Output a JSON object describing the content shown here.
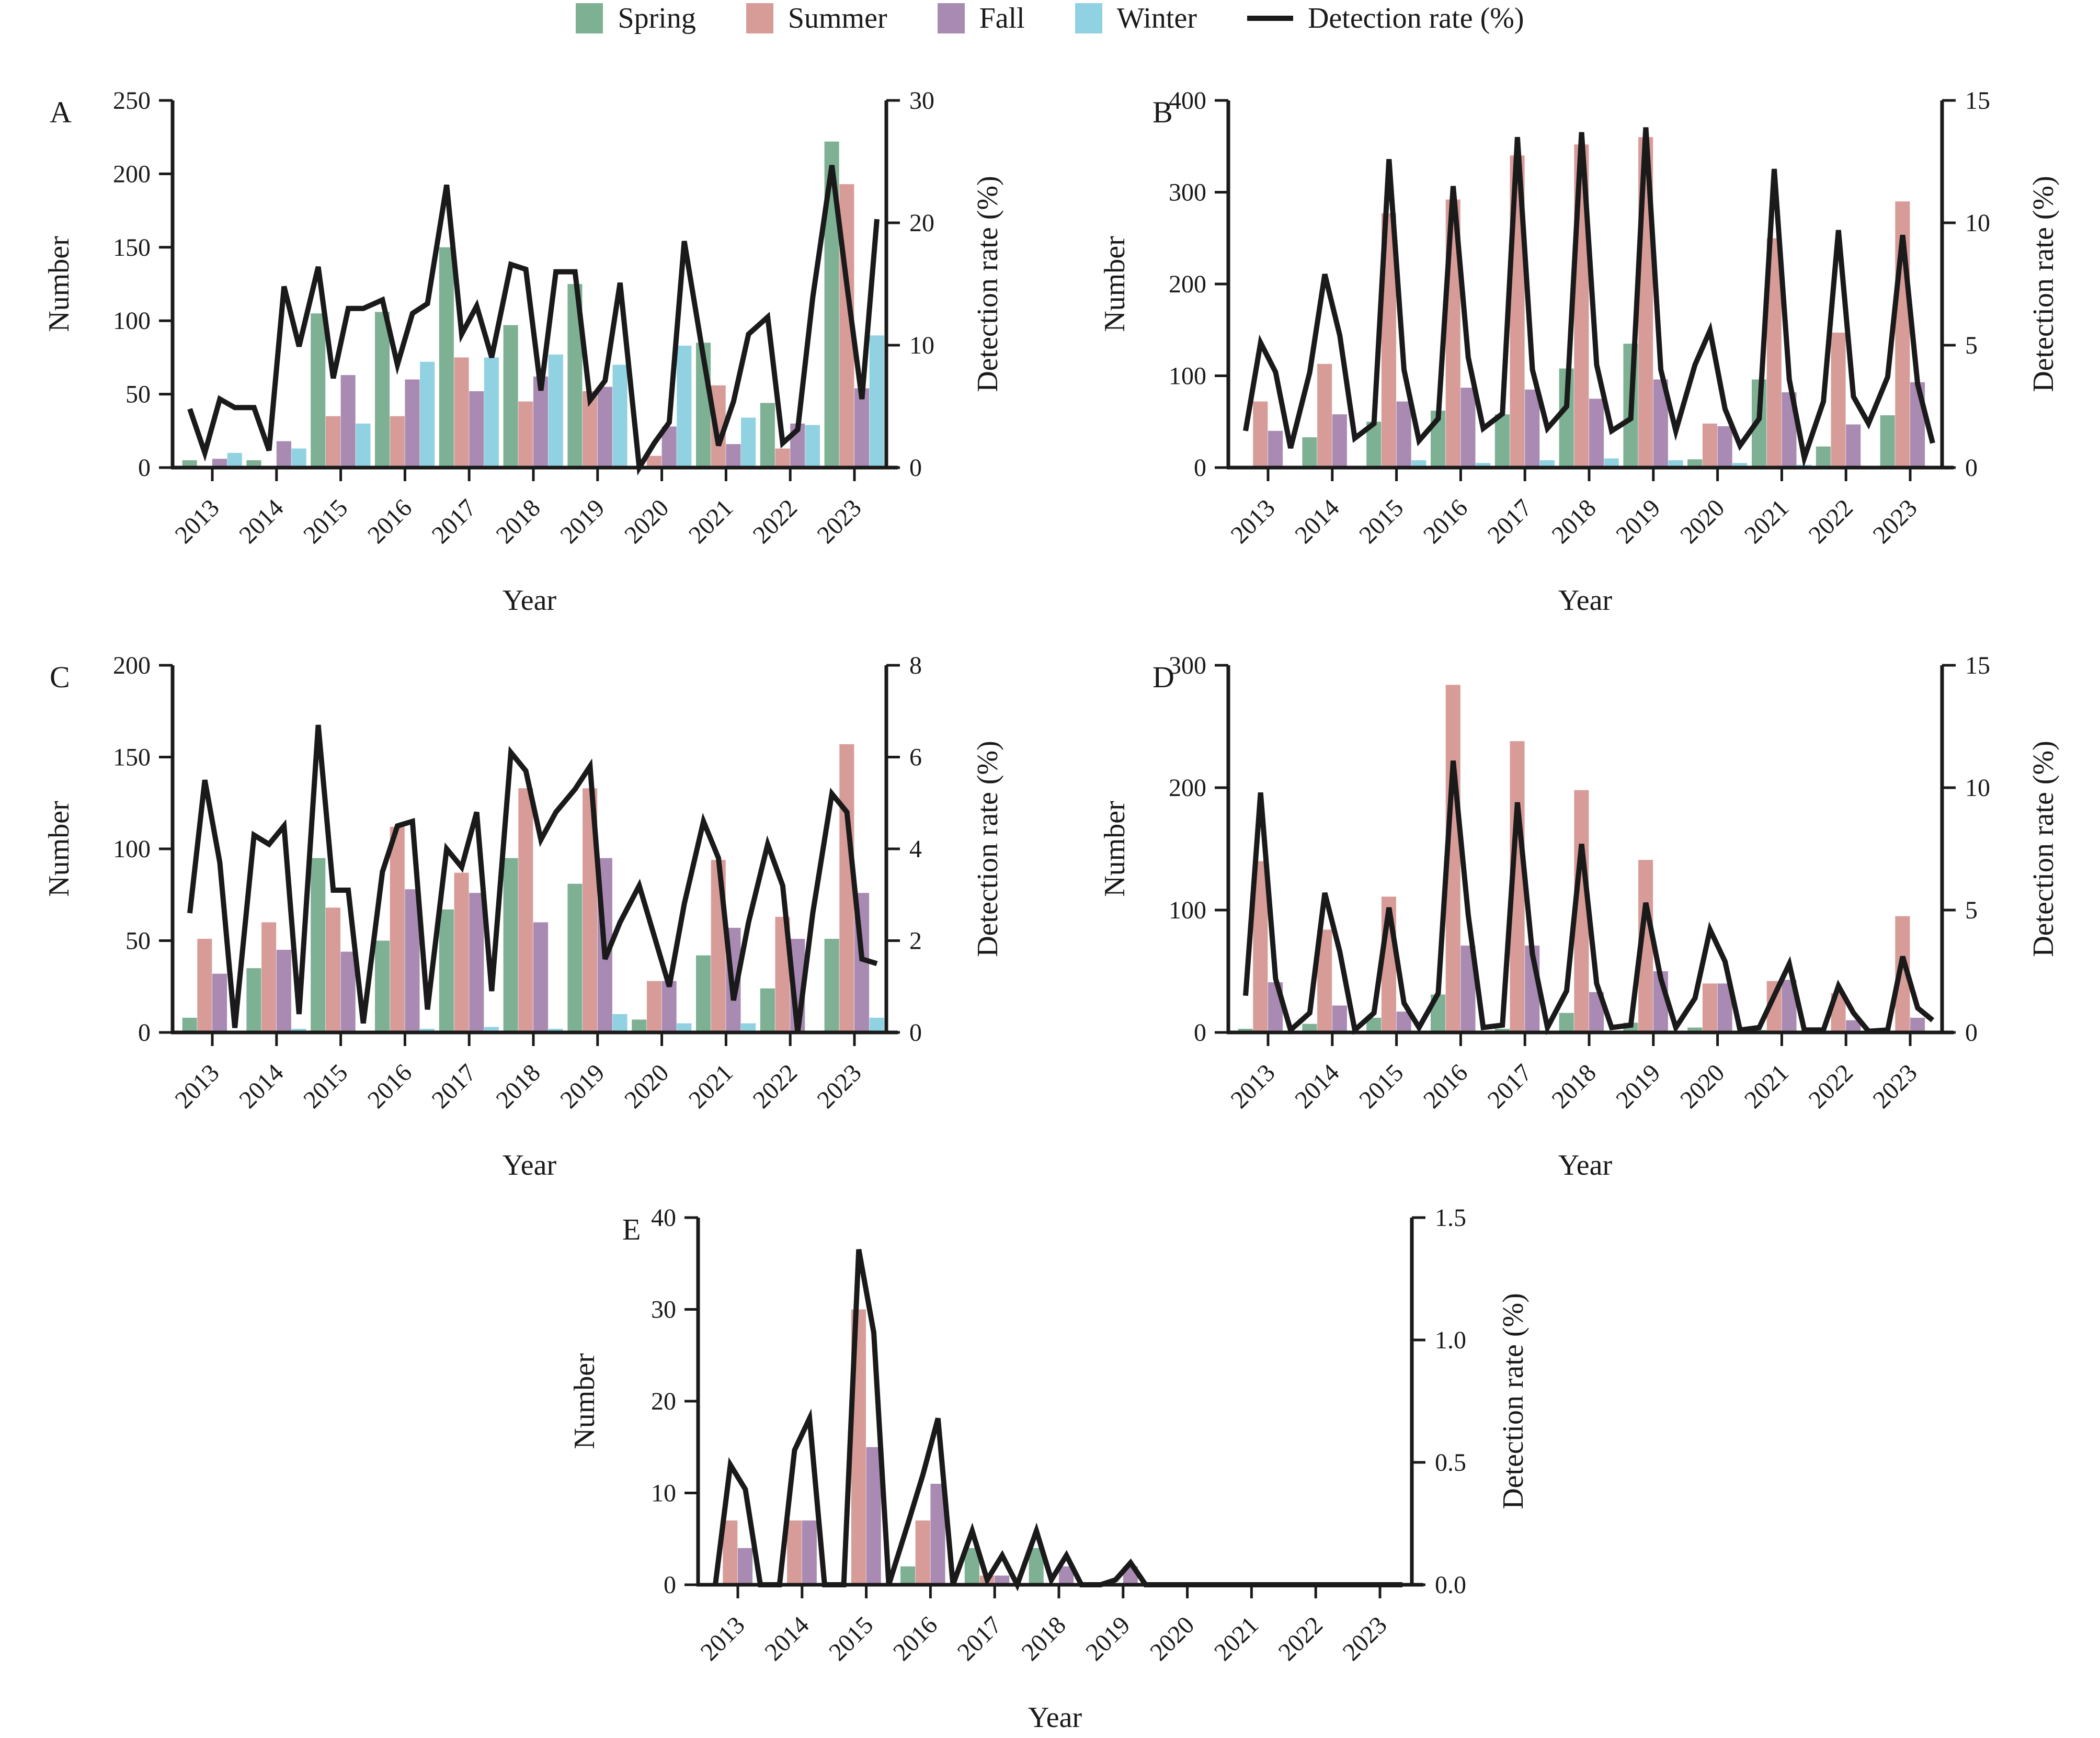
{
  "legend": {
    "items": [
      {
        "label": "Spring",
        "color": "#7EB194"
      },
      {
        "label": "Summer",
        "color": "#D89C98"
      },
      {
        "label": "Fall",
        "color": "#A98AB3"
      },
      {
        "label": "Winter",
        "color": "#90D1E2"
      }
    ],
    "line_label": "Detection rate (%)",
    "line_color": "#1a1a1a"
  },
  "axes_labels": {
    "x": "Year",
    "y_left": "Number",
    "y_right": "Detection rate (%)"
  },
  "years": [
    "2013",
    "2014",
    "2015",
    "2016",
    "2017",
    "2018",
    "2019",
    "2020",
    "2021",
    "2022",
    "2023"
  ],
  "seasons": [
    "Spring",
    "Summer",
    "Fall",
    "Winter"
  ],
  "chart_data": [
    {
      "panel_label": "A",
      "type": "bar+line",
      "categories": [
        "2013",
        "2014",
        "2015",
        "2016",
        "2017",
        "2018",
        "2019",
        "2020",
        "2021",
        "2022",
        "2023"
      ],
      "y_left": {
        "label": "Number",
        "max": 250,
        "tick_values": [
          0,
          50,
          100,
          150,
          200,
          250
        ],
        "tick_labels": [
          "0",
          "50",
          "100",
          "150",
          "200",
          "250"
        ]
      },
      "y_right": {
        "label": "Detection rate (%)",
        "max": 30,
        "tick_values": [
          0,
          10,
          20,
          30
        ],
        "tick_labels": [
          "0",
          "10",
          "20",
          "30"
        ]
      },
      "series": {
        "Spring": [
          5,
          5,
          105,
          106,
          150,
          97,
          125,
          0,
          85,
          44,
          222
        ],
        "Summer": [
          0,
          0,
          35,
          35,
          75,
          45,
          52,
          8,
          56,
          13,
          193
        ],
        "Fall": [
          6,
          18,
          63,
          60,
          52,
          62,
          55,
          28,
          16,
          30,
          54
        ],
        "Winter": [
          10,
          13,
          30,
          72,
          75,
          77,
          70,
          83,
          34,
          29,
          90
        ]
      },
      "detection_rate_quarterly": [
        4.8,
        1.2,
        5.6,
        4.9,
        4.9,
        1.4,
        14.8,
        9.9,
        16.4,
        7.3,
        13,
        13,
        13.7,
        8.4,
        12.6,
        13.4,
        23.1,
        10.9,
        13.2,
        9,
        16.6,
        16.2,
        6.3,
        16,
        16,
        5.5,
        7.1,
        15.1,
        0,
        2,
        3.7,
        18.5,
        9,
        1.8,
        5.4,
        10.9,
        12.3,
        2,
        3.1,
        13.9,
        24.7,
        14.9,
        5.6,
        20.3
      ]
    },
    {
      "panel_label": "B",
      "type": "bar+line",
      "categories": [
        "2013",
        "2014",
        "2015",
        "2016",
        "2017",
        "2018",
        "2019",
        "2020",
        "2021",
        "2022",
        "2023"
      ],
      "y_left": {
        "label": "Number",
        "max": 400,
        "tick_values": [
          0,
          100,
          200,
          300,
          400
        ],
        "tick_labels": [
          "0",
          "100",
          "200",
          "300",
          "400"
        ]
      },
      "y_right": {
        "label": "Detection rate (%)",
        "max": 15,
        "tick_values": [
          0,
          5,
          10,
          15
        ],
        "tick_labels": [
          "0",
          "5",
          "10",
          "15"
        ]
      },
      "series": {
        "Spring": [
          0,
          33,
          50,
          62,
          58,
          108,
          135,
          9,
          96,
          23,
          57
        ],
        "Summer": [
          72,
          113,
          277,
          292,
          340,
          352,
          360,
          48,
          250,
          147,
          290
        ],
        "Fall": [
          40,
          58,
          72,
          87,
          85,
          75,
          96,
          45,
          82,
          47,
          93
        ],
        "Winter": [
          0,
          0,
          8,
          5,
          8,
          10,
          8,
          5,
          3,
          2,
          2
        ]
      },
      "detection_rate_quarterly": [
        1.5,
        5.1,
        3.9,
        0.8,
        3.9,
        7.9,
        5.4,
        1.2,
        1.8,
        12.6,
        4,
        1.1,
        2,
        11.5,
        4.5,
        1.6,
        2.2,
        13.5,
        4,
        1.6,
        2.5,
        13.7,
        4.2,
        1.5,
        2,
        13.9,
        4,
        1.5,
        4.2,
        5.6,
        2.4,
        0.9,
        2,
        12.2,
        3.6,
        0.4,
        2.7,
        9.7,
        2.9,
        1.8,
        3.7,
        9.5,
        3.4,
        1
      ]
    },
    {
      "panel_label": "C",
      "type": "bar+line",
      "categories": [
        "2013",
        "2014",
        "2015",
        "2016",
        "2017",
        "2018",
        "2019",
        "2020",
        "2021",
        "2022",
        "2023"
      ],
      "y_left": {
        "label": "Number",
        "max": 200,
        "tick_values": [
          0,
          50,
          100,
          150,
          200
        ],
        "tick_labels": [
          "0",
          "50",
          "100",
          "150",
          "200"
        ]
      },
      "y_right": {
        "label": "Detection rate (%)",
        "max": 8,
        "tick_values": [
          0,
          2,
          4,
          6,
          8
        ],
        "tick_labels": [
          "0",
          "2",
          "4",
          "6",
          "8"
        ]
      },
      "series": {
        "Spring": [
          8,
          35,
          95,
          50,
          67,
          95,
          81,
          7,
          42,
          24,
          51
        ],
        "Summer": [
          51,
          60,
          68,
          112,
          87,
          133,
          133,
          28,
          94,
          63,
          157
        ],
        "Fall": [
          32,
          45,
          44,
          78,
          76,
          60,
          95,
          28,
          57,
          51,
          76
        ],
        "Winter": [
          0,
          2,
          0,
          2,
          3,
          2,
          10,
          5,
          5,
          0,
          8
        ]
      },
      "detection_rate_quarterly": [
        2.6,
        5.5,
        3.7,
        0.1,
        4.3,
        4.1,
        4.5,
        0.4,
        6.7,
        3.1,
        3.1,
        0.2,
        3.5,
        4.5,
        4.6,
        0.5,
        4,
        3.6,
        4.8,
        0.9,
        6.1,
        5.7,
        4.2,
        4.8,
        5.3,
        5.8,
        1.6,
        2.4,
        3.2,
        2.1,
        1,
        2.8,
        4.6,
        3.8,
        0.7,
        2.4,
        4.1,
        3.2,
        0,
        2.6,
        5.2,
        4.8,
        1.6,
        1.5
      ]
    },
    {
      "panel_label": "D",
      "type": "bar+line",
      "categories": [
        "2013",
        "2014",
        "2015",
        "2016",
        "2017",
        "2018",
        "2019",
        "2020",
        "2021",
        "2022",
        "2023"
      ],
      "y_left": {
        "label": "Number",
        "max": 300,
        "tick_values": [
          0,
          100,
          200,
          300
        ],
        "tick_labels": [
          "0",
          "100",
          "200",
          "300"
        ]
      },
      "y_right": {
        "label": "Detection rate (%)",
        "max": 15,
        "tick_values": [
          0,
          5,
          10,
          15
        ],
        "tick_labels": [
          "0",
          "5",
          "10",
          "15"
        ]
      },
      "series": {
        "Spring": [
          3,
          7,
          12,
          31,
          3,
          16,
          8,
          4,
          2,
          0,
          0
        ],
        "Summer": [
          140,
          84,
          111,
          284,
          238,
          198,
          141,
          40,
          42,
          32,
          95
        ],
        "Fall": [
          41,
          22,
          17,
          71,
          71,
          33,
          50,
          40,
          43,
          10,
          12
        ],
        "Winter": [
          0,
          0,
          0,
          0,
          0,
          0,
          0,
          0,
          0,
          0,
          0
        ]
      },
      "detection_rate_quarterly": [
        1.5,
        9.8,
        2.2,
        0.1,
        0.8,
        5.7,
        3.3,
        0.1,
        0.8,
        5.1,
        1.2,
        0.2,
        1.6,
        11.1,
        4.8,
        0.2,
        0.3,
        9.4,
        3.2,
        0.2,
        1.7,
        7.7,
        2,
        0.2,
        0.3,
        5.3,
        2.2,
        0.2,
        1.4,
        4.2,
        2.9,
        0.1,
        0.2,
        1.5,
        2.8,
        0.1,
        0.1,
        1.9,
        0.8,
        0.05,
        0.1,
        3.1,
        1,
        0.5
      ]
    },
    {
      "panel_label": "E",
      "type": "bar+line",
      "categories": [
        "2013",
        "2014",
        "2015",
        "2016",
        "2017",
        "2018",
        "2019",
        "2020",
        "2021",
        "2022",
        "2023"
      ],
      "y_left": {
        "label": "Number",
        "max": 40,
        "tick_values": [
          0,
          10,
          20,
          30,
          40
        ],
        "tick_labels": [
          "0",
          "10",
          "20",
          "30",
          "40"
        ]
      },
      "y_right": {
        "label": "Detection rate (%)",
        "max": 1.5,
        "tick_values": [
          0,
          0.5,
          1.0,
          1.5
        ],
        "tick_labels": [
          "0.0",
          "0.5",
          "1.0",
          "1.5"
        ]
      },
      "series": {
        "Spring": [
          0,
          0,
          0,
          2,
          4,
          4,
          0,
          0,
          0,
          0,
          0
        ],
        "Summer": [
          7,
          7,
          30,
          7,
          1,
          0,
          0,
          0,
          0,
          0,
          0
        ],
        "Fall": [
          4,
          7,
          15,
          11,
          1,
          2,
          2,
          0,
          0,
          0,
          0
        ],
        "Winter": [
          0,
          0,
          0,
          0,
          0,
          0,
          0,
          0,
          0,
          0,
          0
        ]
      },
      "detection_rate_quarterly": [
        0,
        0.49,
        0.39,
        0,
        0,
        0.55,
        0.68,
        0,
        0,
        1.37,
        1.03,
        0,
        0.25,
        0.45,
        0.68,
        0,
        0.22,
        0.02,
        0.12,
        0,
        0.22,
        0.02,
        0.12,
        0,
        0,
        0.02,
        0.09,
        0,
        0,
        0,
        0,
        0,
        0,
        0,
        0,
        0,
        0,
        0,
        0,
        0,
        0,
        0,
        0,
        0
      ]
    }
  ]
}
